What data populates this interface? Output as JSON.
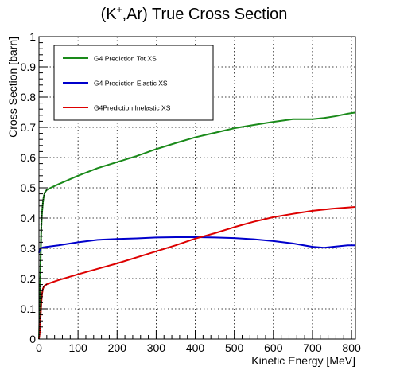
{
  "chart_data": {
    "type": "line",
    "title_main": "(K",
    "title_sup": "+",
    "title_rest": ",Ar) True Cross Section",
    "xlabel": "Kinetic Energy [MeV]",
    "ylabel": "Cross Section [barn]",
    "xlim": [
      0,
      810
    ],
    "ylim": [
      0,
      1
    ],
    "grid": true,
    "legend_position": "top-left",
    "x_ticks": [
      0,
      100,
      200,
      300,
      400,
      500,
      600,
      700,
      800
    ],
    "x_tick_labels": [
      "0",
      "100",
      "200",
      "300",
      "400",
      "500",
      "600",
      "700",
      "800"
    ],
    "y_ticks": [
      0,
      0.1,
      0.2,
      0.3,
      0.4,
      0.5,
      0.6,
      0.7,
      0.8,
      0.9,
      1
    ],
    "y_tick_labels": [
      "0",
      "0.1",
      "0.2",
      "0.3",
      "0.4",
      "0.5",
      "0.6",
      "0.7",
      "0.8",
      "0.9",
      "1"
    ],
    "series": [
      {
        "name": "G4 Prediction Tot XS",
        "color": "#1a8a1a",
        "x": [
          0,
          2,
          4,
          6,
          8,
          10,
          12,
          15,
          20,
          30,
          50,
          100,
          150,
          200,
          250,
          300,
          350,
          400,
          450,
          500,
          550,
          600,
          650,
          700,
          730,
          760,
          790,
          810
        ],
        "y": [
          0.0,
          0.1,
          0.25,
          0.37,
          0.42,
          0.45,
          0.47,
          0.485,
          0.493,
          0.5,
          0.512,
          0.54,
          0.565,
          0.585,
          0.605,
          0.628,
          0.648,
          0.667,
          0.682,
          0.697,
          0.708,
          0.718,
          0.727,
          0.727,
          0.731,
          0.737,
          0.745,
          0.749
        ]
      },
      {
        "name": "G4 Prediction Elastic XS",
        "color": "#0000cc",
        "x": [
          0,
          2,
          5,
          10,
          20,
          50,
          100,
          150,
          200,
          250,
          300,
          350,
          400,
          450,
          500,
          550,
          600,
          650,
          700,
          730,
          760,
          790,
          810
        ],
        "y": [
          0.285,
          0.295,
          0.3,
          0.303,
          0.305,
          0.31,
          0.32,
          0.328,
          0.331,
          0.333,
          0.336,
          0.337,
          0.337,
          0.336,
          0.334,
          0.33,
          0.324,
          0.316,
          0.305,
          0.302,
          0.306,
          0.31,
          0.31
        ]
      },
      {
        "name": "G4Prediction Inelastic XS",
        "color": "#dd0000",
        "x": [
          0,
          2,
          4,
          6,
          8,
          10,
          12,
          15,
          20,
          30,
          50,
          100,
          150,
          200,
          250,
          300,
          350,
          400,
          450,
          500,
          550,
          600,
          650,
          700,
          750,
          800,
          810
        ],
        "y": [
          0.0,
          0.02,
          0.07,
          0.12,
          0.15,
          0.165,
          0.172,
          0.177,
          0.181,
          0.186,
          0.195,
          0.214,
          0.232,
          0.25,
          0.27,
          0.29,
          0.31,
          0.332,
          0.35,
          0.37,
          0.388,
          0.403,
          0.414,
          0.424,
          0.431,
          0.436,
          0.437
        ]
      }
    ]
  }
}
